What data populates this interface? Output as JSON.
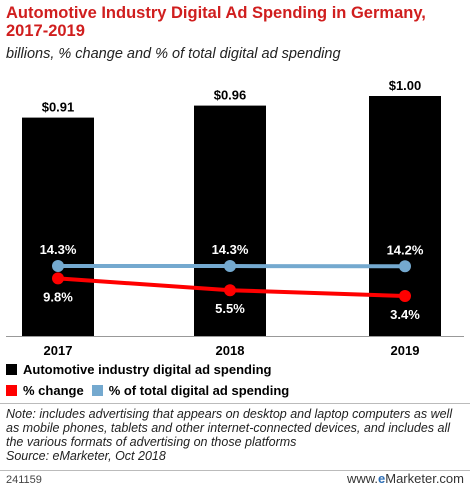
{
  "title": "Automotive Industry Digital Ad Spending in Germany, 2017-2019",
  "subtitle": "billions, % change and % of total digital ad spending",
  "chart_data": {
    "type": "bar",
    "categories": [
      "2017",
      "2018",
      "2019"
    ],
    "series": [
      {
        "name": "Automotive industry digital ad spending",
        "values": [
          0.91,
          0.96,
          1.0
        ],
        "labels": [
          "$0.91",
          "$0.96",
          "$1.00"
        ],
        "color": "#000000",
        "kind": "bar"
      },
      {
        "name": "% change",
        "values": [
          9.8,
          5.5,
          3.4
        ],
        "labels": [
          "9.8%",
          "5.5%",
          "3.4%"
        ],
        "color": "#ff0000",
        "kind": "line"
      },
      {
        "name": "% of total digital ad spending",
        "values": [
          14.3,
          14.3,
          14.2
        ],
        "labels": [
          "14.3%",
          "14.3%",
          "14.2%"
        ],
        "color": "#74a9cf",
        "kind": "line"
      }
    ]
  },
  "legend": {
    "item1": "Automotive industry digital ad spending",
    "item2": "% change",
    "item3": "% of total digital ad spending"
  },
  "note": "Note: includes advertising that appears on desktop and laptop computers as well as mobile phones, tablets and other internet-connected devices, and includes all the various formats of advertising on those platforms",
  "source": "Source: eMarketer, Oct 2018",
  "footer": {
    "id": "241159",
    "brand_prefix": "www.",
    "brand_e": "e",
    "brand_rest": "Marketer.com"
  }
}
